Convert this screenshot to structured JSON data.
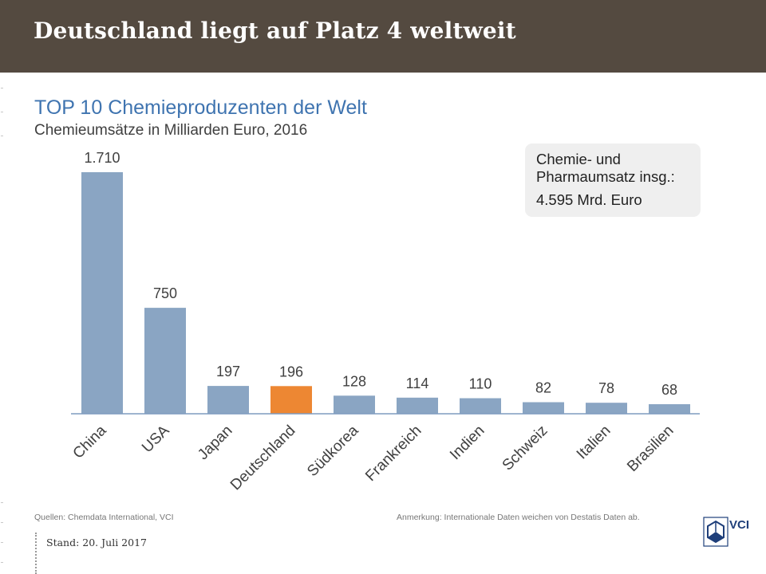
{
  "header": {
    "title": "Deutschland liegt auf Platz 4 weltweit"
  },
  "chart_data": {
    "type": "bar",
    "title": "TOP 10 Chemieproduzenten der Welt",
    "subtitle": "Chemieumsätze in Milliarden Euro, 2016",
    "categories": [
      "China",
      "USA",
      "Japan",
      "Deutschland",
      "Südkorea",
      "Frankreich",
      "Indien",
      "Schweiz",
      "Italien",
      "Brasilien"
    ],
    "values": [
      1710,
      750,
      197,
      196,
      128,
      114,
      110,
      82,
      78,
      68
    ],
    "value_labels": [
      "1.710",
      "750",
      "197",
      "196",
      "128",
      "114",
      "110",
      "82",
      "78",
      "68"
    ],
    "highlight": "Deutschland",
    "colors": {
      "bar": "#8aa5c3",
      "highlight": "#ed8733",
      "axis": "#7f9bbf",
      "label": "#404040",
      "title": "#3f74b0"
    },
    "ylim": [
      0,
      1710
    ],
    "grid": false,
    "legend": "none"
  },
  "infobox": {
    "line1": "Chemie- und",
    "line2": "Pharmaumsatz insg.:",
    "total": "4.595 Mrd. Euro"
  },
  "footer": {
    "source": "Quellen: Chemdata International, VCI",
    "note": "Anmerkung: Internationale Daten weichen von Destatis Daten ab.",
    "stand": "Stand: 20. Juli 2017",
    "logo_text": "VCI",
    "logo_icon": "vci-hexagon-logo-icon"
  }
}
